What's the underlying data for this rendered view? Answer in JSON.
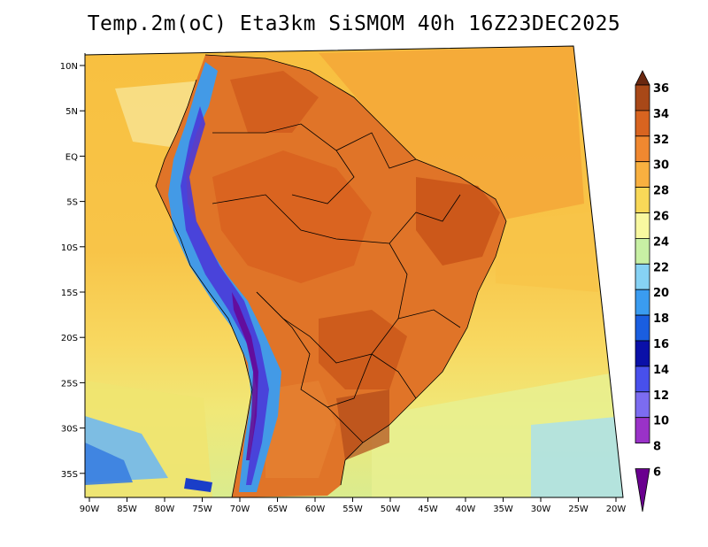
{
  "title": "Temp.2m(oC) Eta3km SiSMOM 40h 16Z23DEC2025",
  "latitude_ticks": [
    "10N",
    "5N",
    "EQ",
    "5S",
    "10S",
    "15S",
    "20S",
    "25S",
    "30S",
    "35S"
  ],
  "longitude_ticks": [
    "90W",
    "85W",
    "80W",
    "75W",
    "70W",
    "65W",
    "60W",
    "55W",
    "50W",
    "45W",
    "40W",
    "35W",
    "30W",
    "25W",
    "20W"
  ],
  "colorbar": {
    "labels": [
      "6",
      "8",
      "10",
      "12",
      "14",
      "16",
      "18",
      "20",
      "22",
      "24",
      "26",
      "28",
      "30",
      "32",
      "34",
      "36"
    ],
    "colors": [
      "#6a008f",
      "#9a32c8",
      "#7c6cf0",
      "#4850ec",
      "#0a10a8",
      "#1a5ee0",
      "#3a9cf0",
      "#86d2f4",
      "#c8f0a4",
      "#f8f8a0",
      "#f8d858",
      "#f8b040",
      "#f08830",
      "#d86420",
      "#a84818",
      "#6a2810"
    ]
  }
}
